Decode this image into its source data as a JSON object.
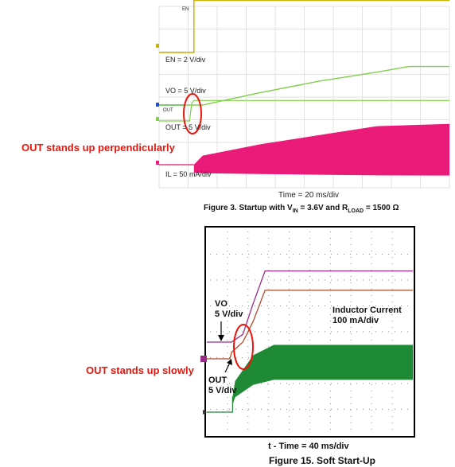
{
  "annotations": {
    "top_note": "OUT stands up perpendicularly",
    "bottom_note": "OUT stands up slowly"
  },
  "colors": {
    "annotation_red": "#e8160c",
    "en_trace": "#c8b400",
    "vo_trace": "#7ed04a",
    "vo_pre_trace": "#1e4fd6",
    "il_trace": "#ea1a78",
    "vo_trace_2": "#9b2a88",
    "out_trace_2": "#b24a2a",
    "il_trace_2": "#1f8a35"
  },
  "chart_data": [
    {
      "type": "line",
      "title": "Figure 3. Startup with VIN = 3.6V and RLOAD = 1500 Ω",
      "title_parts": {
        "a": "Figure 3. Startup with V",
        "b": "IN",
        "c": " = 3.6V and R",
        "d": "LOAD",
        "e": " = 1500 Ω"
      },
      "xlabel": "Time = 20 ms/div",
      "grid": true,
      "x_unit": "ms",
      "xlim": [
        0,
        200
      ],
      "channel_labels": [
        "EN",
        "VO",
        "OUT",
        "IL"
      ],
      "scale_labels": [
        "EN = 2 V/div",
        "VO = 5 V/div",
        "OUT = 5 V/div",
        "IL = 50 mA/div"
      ],
      "series": [
        {
          "name": "EN",
          "x": [
            0,
            24,
            24,
            200
          ],
          "y_div": [
            0,
            0,
            2.3,
            2.3
          ]
        },
        {
          "name": "VO",
          "x": [
            0,
            30,
            70,
            110,
            150,
            172,
            200
          ],
          "y_div": [
            0,
            0,
            0.55,
            1.05,
            1.45,
            1.7,
            1.7
          ]
        },
        {
          "name": "OUT",
          "x": [
            0,
            21,
            22.5,
            24,
            200
          ],
          "y_div": [
            0,
            0,
            0.8,
            0.9,
            0.9
          ]
        },
        {
          "name": "IL",
          "x": [
            0,
            30,
            70,
            110,
            150,
            200
          ],
          "y_div": [
            0,
            0.4,
            0.9,
            1.3,
            1.7,
            1.8
          ]
        }
      ]
    },
    {
      "type": "line",
      "title": "Figure 15. Soft Start-Up",
      "xlabel": "t - Time = 40 ms/div",
      "grid": true,
      "x_unit": "ms",
      "xlim": [
        0,
        400
      ],
      "labels": {
        "vo": "VO",
        "vo_scale": "5 V/div",
        "out": "OUT",
        "out_scale": "5 V/div",
        "inductor_title": "Inductor Current",
        "inductor_scale": "100 mA/div"
      },
      "series": [
        {
          "name": "VO",
          "x": [
            0,
            48,
            70,
            90,
            113,
            400
          ],
          "y_div": [
            0,
            0,
            0.3,
            1.5,
            2.75,
            2.75
          ]
        },
        {
          "name": "OUT",
          "x": [
            0,
            45,
            48,
            70,
            90,
            113,
            400
          ],
          "y_div": [
            0,
            0,
            0.25,
            0.65,
            1.45,
            2.65,
            2.65
          ]
        },
        {
          "name": "Inductor Current",
          "x": [
            0,
            50,
            55,
            90,
            130,
            400
          ],
          "y_div": [
            0,
            0.6,
            1.2,
            2.2,
            2.6,
            2.6
          ]
        }
      ]
    }
  ]
}
